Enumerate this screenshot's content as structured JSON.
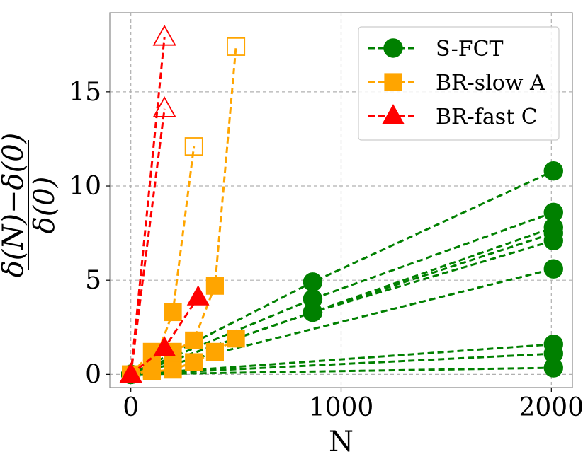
{
  "chart_data": {
    "type": "line",
    "title": "",
    "xlabel": "N",
    "ylabel_numerator": "δ(N)−δ(0)",
    "ylabel_denominator": "δ(0)",
    "xlim": [
      -100,
      2100
    ],
    "ylim": [
      -0.7,
      19.2
    ],
    "xticks": [
      0,
      1000,
      2000
    ],
    "xtick_labels": [
      "0",
      "1000",
      "2000"
    ],
    "yticks": [
      0,
      5,
      10,
      15
    ],
    "ytick_labels": [
      "0",
      "5",
      "10",
      "15"
    ],
    "grid": true,
    "legend_position": "top-right",
    "legend": [
      {
        "label": "S-FCT",
        "color": "#008000",
        "marker": "circle"
      },
      {
        "label": "BR-slow A",
        "color": "#FFA500",
        "marker": "square"
      },
      {
        "label": "BR-fast C",
        "color": "#FF0000",
        "marker": "triangle"
      }
    ],
    "series": [
      {
        "name": "S-FCT",
        "color": "#008000",
        "marker": "circle",
        "x": [
          0,
          865,
          2010
        ],
        "y": [
          0,
          4.9,
          10.8
        ]
      },
      {
        "name": "S-FCT",
        "color": "#008000",
        "marker": "circle",
        "x": [
          0,
          865,
          2010
        ],
        "y": [
          0,
          4.0,
          8.6
        ]
      },
      {
        "name": "S-FCT",
        "color": "#008000",
        "marker": "circle",
        "x": [
          0,
          865,
          2010
        ],
        "y": [
          0,
          3.3,
          7.8
        ]
      },
      {
        "name": "S-FCT",
        "color": "#008000",
        "marker": "circle",
        "x": [
          0,
          865,
          2010
        ],
        "y": [
          0,
          3.3,
          7.5
        ]
      },
      {
        "name": "S-FCT",
        "color": "#008000",
        "marker": "circle",
        "x": [
          0,
          865,
          2010
        ],
        "y": [
          0,
          3.3,
          7.1
        ]
      },
      {
        "name": "S-FCT",
        "color": "#008000",
        "marker": "circle",
        "x": [
          0,
          2010
        ],
        "y": [
          0,
          5.6
        ]
      },
      {
        "name": "S-FCT",
        "color": "#008000",
        "marker": "circle",
        "x": [
          0,
          2010
        ],
        "y": [
          0,
          1.6
        ]
      },
      {
        "name": "S-FCT",
        "color": "#008000",
        "marker": "circle",
        "x": [
          0,
          2010
        ],
        "y": [
          0,
          1.1
        ]
      },
      {
        "name": "S-FCT",
        "color": "#008000",
        "marker": "circle",
        "x": [
          0,
          2010
        ],
        "y": [
          0,
          0.35
        ]
      },
      {
        "name": "BR-slow A",
        "color": "#FFA500",
        "marker": "square",
        "x": [
          0,
          100,
          200,
          300
        ],
        "y": [
          0,
          0.3,
          3.3,
          12.1
        ],
        "open": [
          false,
          false,
          false,
          true
        ]
      },
      {
        "name": "BR-slow A",
        "color": "#FFA500",
        "marker": "square",
        "x": [
          0,
          100,
          200,
          300,
          400,
          500
        ],
        "y": [
          0,
          1.2,
          1.2,
          1.8,
          4.7,
          17.4
        ],
        "open": [
          false,
          false,
          false,
          false,
          false,
          true
        ]
      },
      {
        "name": "BR-slow A",
        "color": "#FFA500",
        "marker": "square",
        "x": [
          0,
          100,
          200,
          300,
          400,
          500
        ],
        "y": [
          0,
          0.15,
          0.25,
          0.65,
          1.2,
          1.9
        ],
        "open": [
          false,
          false,
          false,
          false,
          false,
          false
        ]
      },
      {
        "name": "BR-fast C",
        "color": "#FF0000",
        "marker": "triangle",
        "x": [
          0,
          160
        ],
        "y": [
          0,
          17.9
        ],
        "open": [
          false,
          true
        ]
      },
      {
        "name": "BR-fast C",
        "color": "#FF0000",
        "marker": "triangle",
        "x": [
          0,
          160
        ],
        "y": [
          0,
          14.1
        ],
        "open": [
          false,
          true
        ]
      },
      {
        "name": "BR-fast C",
        "color": "#FF0000",
        "marker": "triangle",
        "x": [
          0,
          160,
          320
        ],
        "y": [
          0,
          1.4,
          4.1
        ],
        "open": [
          false,
          false,
          false
        ]
      }
    ]
  }
}
